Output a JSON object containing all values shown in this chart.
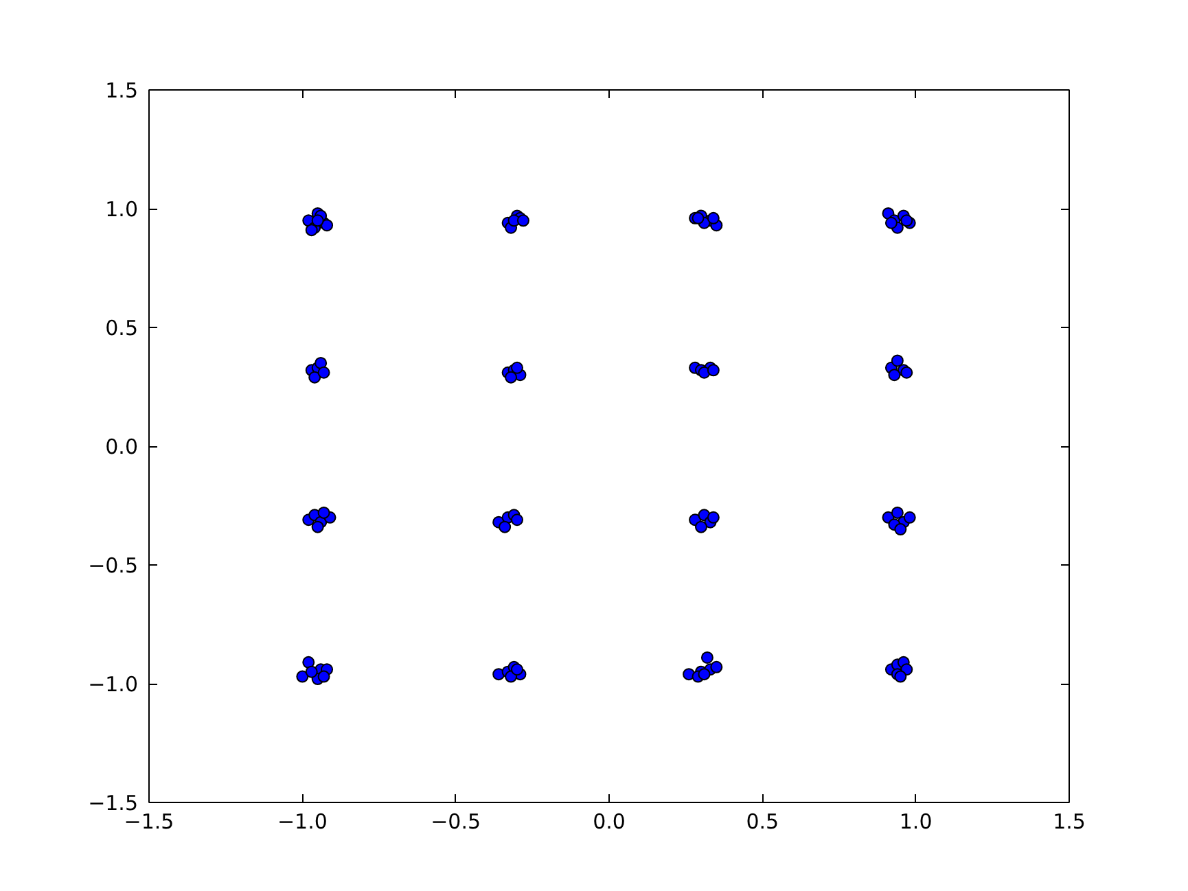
{
  "chart_data": {
    "type": "scatter",
    "marker": "circle",
    "color": "#0000ff",
    "x": [
      -0.98,
      -0.95,
      -0.93,
      -0.96,
      -0.94,
      -0.92,
      -0.97,
      -0.95,
      -0.33,
      -0.3,
      -0.29,
      -0.32,
      -0.31,
      -0.28,
      0.28,
      0.3,
      0.33,
      0.35,
      0.31,
      0.29,
      0.34,
      0.91,
      0.93,
      0.96,
      0.98,
      0.94,
      0.97,
      0.92,
      -0.97,
      -0.95,
      -0.94,
      -0.96,
      -0.93,
      -0.33,
      -0.31,
      -0.29,
      -0.32,
      -0.3,
      0.28,
      0.3,
      0.33,
      0.31,
      0.34,
      0.92,
      0.94,
      0.96,
      0.93,
      0.97,
      -0.98,
      -0.96,
      -0.94,
      -0.95,
      -0.91,
      -0.93,
      -0.36,
      -0.33,
      -0.31,
      -0.34,
      -0.3,
      0.28,
      0.31,
      0.33,
      0.3,
      0.34,
      0.91,
      0.94,
      0.96,
      0.93,
      0.98,
      0.95,
      -0.98,
      -1.0,
      -0.94,
      -0.92,
      -0.95,
      -0.97,
      -0.93,
      -0.36,
      -0.33,
      -0.31,
      -0.29,
      -0.32,
      -0.3,
      0.26,
      0.3,
      0.32,
      0.33,
      0.35,
      0.29,
      0.31,
      0.92,
      0.94,
      0.96,
      0.97,
      0.94,
      0.95
    ],
    "values": [
      0.95,
      0.98,
      0.94,
      0.92,
      0.97,
      0.93,
      0.91,
      0.95,
      0.94,
      0.97,
      0.96,
      0.92,
      0.95,
      0.95,
      0.96,
      0.97,
      0.95,
      0.93,
      0.94,
      0.96,
      0.96,
      0.98,
      0.95,
      0.97,
      0.94,
      0.92,
      0.95,
      0.94,
      0.32,
      0.33,
      0.35,
      0.29,
      0.31,
      0.31,
      0.32,
      0.3,
      0.29,
      0.33,
      0.33,
      0.32,
      0.33,
      0.31,
      0.32,
      0.33,
      0.36,
      0.32,
      0.3,
      0.31,
      -0.31,
      -0.29,
      -0.32,
      -0.34,
      -0.3,
      -0.28,
      -0.32,
      -0.3,
      -0.29,
      -0.34,
      -0.31,
      -0.31,
      -0.29,
      -0.32,
      -0.34,
      -0.3,
      -0.3,
      -0.28,
      -0.32,
      -0.33,
      -0.3,
      -0.35,
      -0.91,
      -0.97,
      -0.94,
      -0.94,
      -0.98,
      -0.95,
      -0.97,
      -0.96,
      -0.95,
      -0.93,
      -0.96,
      -0.97,
      -0.94,
      -0.96,
      -0.95,
      -0.89,
      -0.94,
      -0.93,
      -0.97,
      -0.96,
      -0.94,
      -0.92,
      -0.91,
      -0.94,
      -0.96,
      -0.97
    ],
    "xlim": [
      -1.5,
      1.5
    ],
    "ylim": [
      -1.5,
      1.5
    ],
    "xticks": [
      {
        "value": -1.5,
        "label": "−1.5"
      },
      {
        "value": -1.0,
        "label": "−1.0"
      },
      {
        "value": -0.5,
        "label": "−0.5"
      },
      {
        "value": 0.0,
        "label": "0.0"
      },
      {
        "value": 0.5,
        "label": "0.5"
      },
      {
        "value": 1.0,
        "label": "1.0"
      },
      {
        "value": 1.5,
        "label": "1.5"
      }
    ],
    "yticks": [
      {
        "value": -1.5,
        "label": "−1.5"
      },
      {
        "value": -1.0,
        "label": "−1.0"
      },
      {
        "value": -0.5,
        "label": "−0.5"
      },
      {
        "value": 0.0,
        "label": "0.0"
      },
      {
        "value": 0.5,
        "label": "0.5"
      },
      {
        "value": 1.0,
        "label": "1.0"
      },
      {
        "value": 1.5,
        "label": "1.5"
      }
    ]
  }
}
